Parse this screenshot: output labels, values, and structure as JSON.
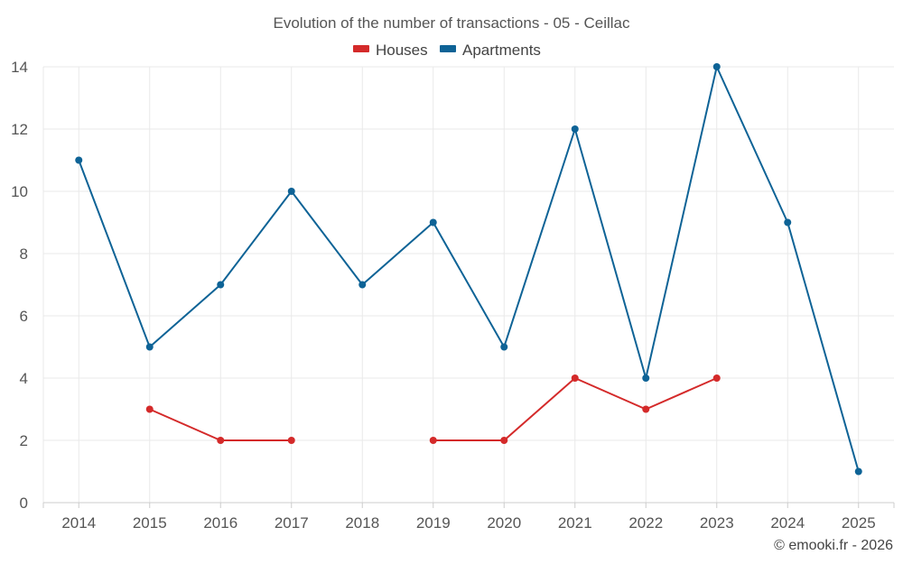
{
  "chart_data": {
    "type": "line",
    "title": "Evolution of the number of transactions - 05 - Ceillac",
    "categories": [
      "2014",
      "2015",
      "2016",
      "2017",
      "2018",
      "2019",
      "2020",
      "2021",
      "2022",
      "2023",
      "2024",
      "2025"
    ],
    "series": [
      {
        "name": "Houses",
        "color": "#d42a2a",
        "values": [
          null,
          3,
          2,
          2,
          null,
          2,
          2,
          4,
          3,
          4,
          null,
          null
        ]
      },
      {
        "name": "Apartments",
        "color": "#0e6396",
        "values": [
          11,
          5,
          7,
          10,
          7,
          9,
          5,
          12,
          4,
          14,
          9,
          1
        ]
      }
    ],
    "yticks": [
      "0",
      "2",
      "4",
      "6",
      "8",
      "10",
      "12",
      "14"
    ],
    "ylim": [
      0,
      14
    ],
    "xlabel": "",
    "ylabel": "",
    "grid": true,
    "legend_position": "top-center"
  },
  "credit": "© emooki.fr - 2026"
}
